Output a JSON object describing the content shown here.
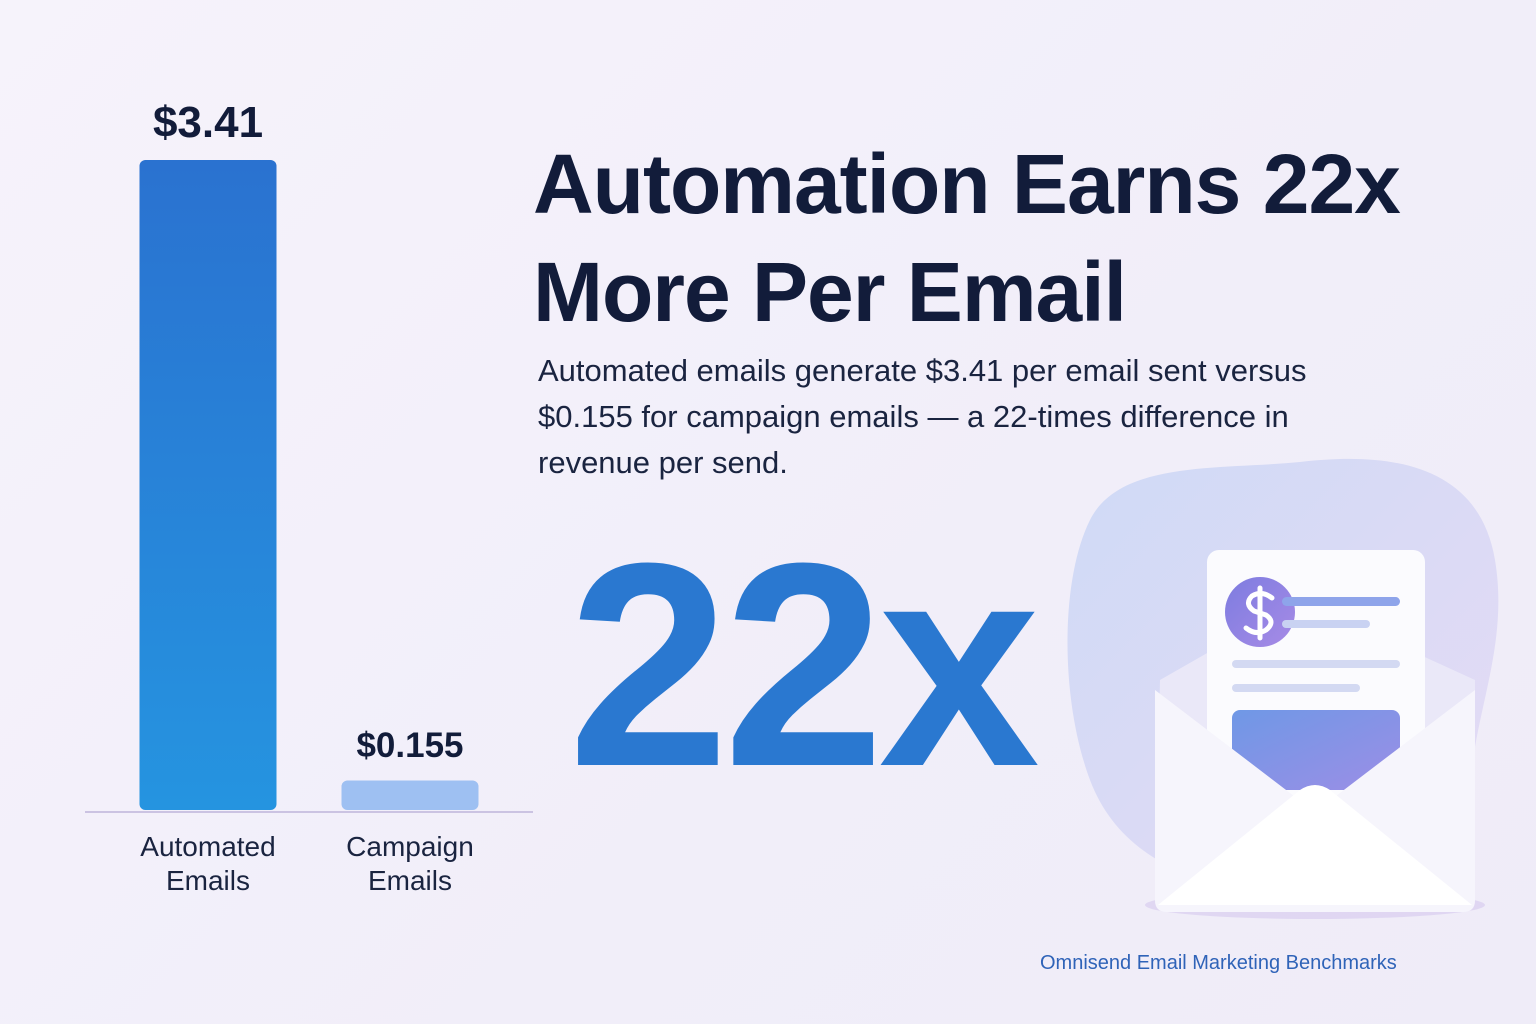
{
  "chart_data": {
    "type": "bar",
    "title": "Automation Earns 22x More Per Email",
    "subtitle": "Automated emails generate $3.41 per email sent versus $0.155 for campaign emails — a 22-times difference in revenue per send.",
    "annotation": "22x",
    "source": "Omnisend Email Marketing Benchmarks",
    "categories": [
      "Automated Emails",
      "Campaign Emails"
    ],
    "values": [
      3.41,
      0.155
    ],
    "value_labels": [
      "$3.41",
      "$0.155"
    ],
    "colors": [
      "#2a7fd8",
      "#9ec0f2"
    ]
  }
}
